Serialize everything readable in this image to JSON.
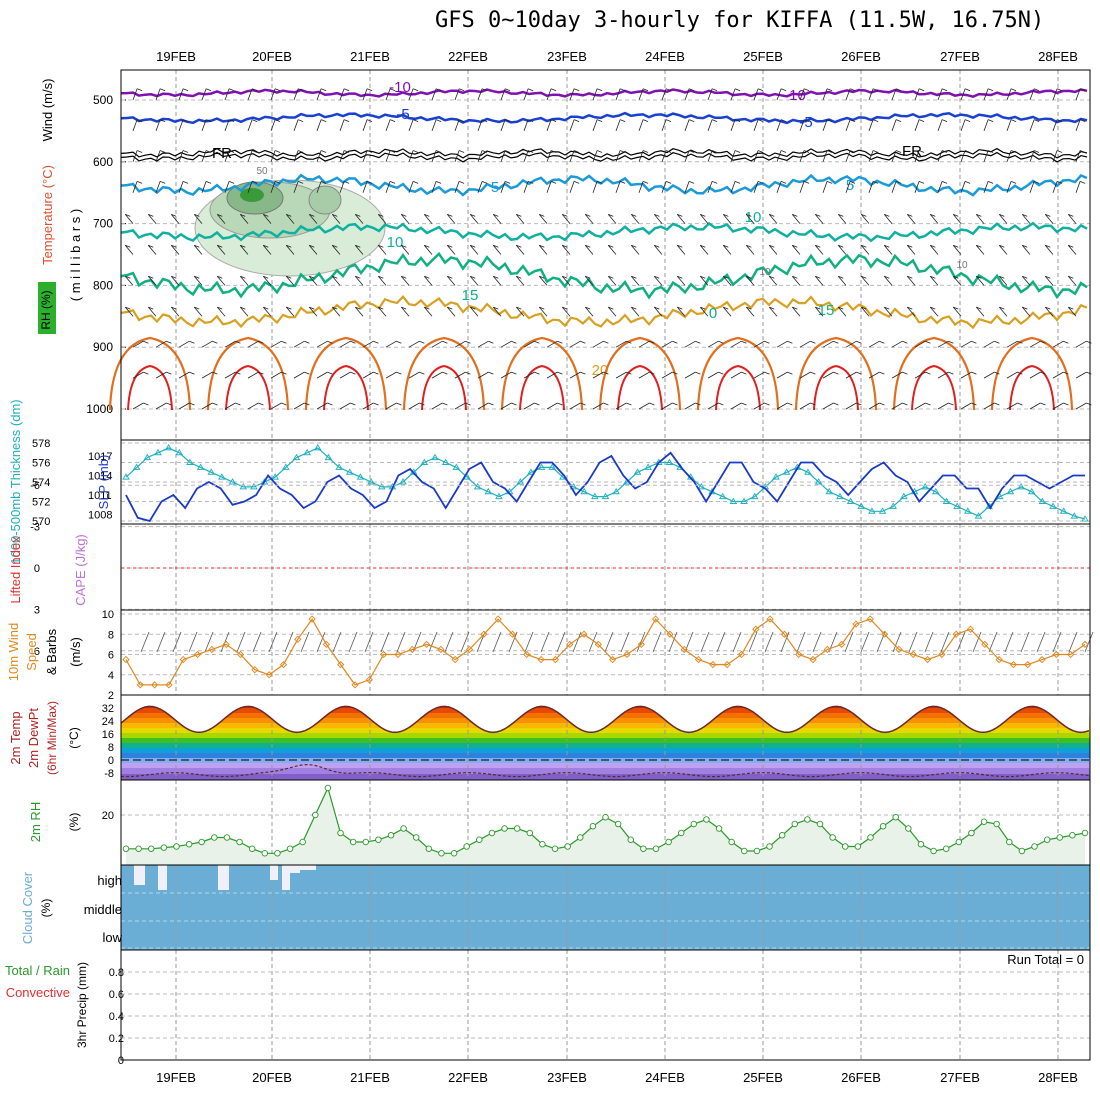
{
  "title": "GFS 0~10day 3-hourly for KIFFA (11.5W, 16.75N)",
  "dates": [
    "19FEB",
    "20FEB",
    "21FEB",
    "22FEB",
    "23FEB",
    "24FEB",
    "25FEB",
    "26FEB",
    "27FEB",
    "28FEB"
  ],
  "colors": {
    "wind": "#000000",
    "temperature": "#e05020",
    "rh": "#2a9a2a",
    "thickness": "#20b0c0",
    "slp": "#1a3ac8",
    "lifted": "#e03030",
    "cape": "#c070d0",
    "wind10": "#e08820",
    "cloud": "#6aaed6",
    "precip_total": "#2a9a2a",
    "precip_conv": "#e03030"
  },
  "panel1": {
    "labels": {
      "rh": "RH (%)",
      "temperature": "Temperature (°C)",
      "wind": "Wind (m/s)",
      "pressure": "( m i l l i b a r s )"
    },
    "pressure_ticks": [
      "500",
      "600",
      "700",
      "800",
      "900",
      "1000"
    ],
    "isotherm_labels": [
      "-10",
      "-5",
      "FR",
      "5",
      "10",
      "15",
      "20",
      "-10",
      "-5",
      "FR",
      "5",
      "10",
      "15",
      "0"
    ],
    "rh_labels": [
      "50",
      "10",
      "10"
    ]
  },
  "panel2": {
    "thickness_label": "1000-500mb Thickness (dm)",
    "slp_label": "SLP (mb)",
    "thickness_ticks": [
      "578",
      "576",
      "574",
      "572",
      "570"
    ],
    "slp_ticks": [
      "1017",
      "1014",
      "1011",
      "1008"
    ]
  },
  "panel3": {
    "lifted_label": "Lifted Index",
    "cape_label": "CAPE (J/kg)",
    "ticks": [
      "-6",
      "-3",
      "0",
      "3",
      "6"
    ]
  },
  "panel4": {
    "label_line1": "10m Wind",
    "label_line2": "Speed",
    "label_line3": "& Barbs",
    "unit": "(m/s)",
    "ticks": [
      "10",
      "8",
      "6",
      "4",
      "2"
    ]
  },
  "panel5": {
    "label_line1": "2m Temp",
    "label_line2": "2m DewPt",
    "label_line3": "(6hr Min/Max)",
    "unit": "(°C)",
    "ticks": [
      "32",
      "24",
      "16",
      "8",
      "0",
      "-8"
    ]
  },
  "panel6": {
    "label": "2m RH",
    "unit": "(%)",
    "ticks": [
      "20"
    ]
  },
  "panel7": {
    "label": "Cloud Cover",
    "unit": "(%)",
    "levels": [
      "high",
      "middle",
      "low"
    ]
  },
  "panel8": {
    "label_total": "Total / Rain",
    "label_conv": "Convective",
    "unit": "3hr Precip (mm)",
    "run_total": "Run Total = 0",
    "ticks": [
      "0.8",
      "0.6",
      "0.4",
      "0.2",
      "0"
    ]
  },
  "chart_data": [
    {
      "type": "line",
      "name": "SLP",
      "ylabel": "SLP (mb)",
      "ylim": [
        1007,
        1019
      ],
      "values": [
        1011,
        1007.5,
        1007,
        1010,
        1011,
        1009,
        1012,
        1013,
        1012,
        1009.5,
        1010,
        1011,
        1014,
        1012,
        1011,
        1009,
        1010,
        1013,
        1014,
        1012,
        1011,
        1009,
        1010,
        1014,
        1015,
        1013,
        1012,
        1009,
        1012,
        1015,
        1016,
        1013,
        1012,
        1010,
        1013,
        1016,
        1016,
        1014,
        1011,
        1013,
        1016,
        1017,
        1014,
        1012,
        1013,
        1016,
        1017.5,
        1015,
        1013,
        1010,
        1013,
        1016,
        1016,
        1013,
        1012,
        1010,
        1013,
        1016,
        1016,
        1014,
        1013,
        1011,
        1013,
        1015,
        1016,
        1014,
        1013,
        1010,
        1012,
        1014,
        1014,
        1012,
        1012,
        1009,
        1012,
        1014,
        1014,
        1013,
        1012,
        1013,
        1014,
        1014
      ]
    },
    {
      "type": "line",
      "name": "1000-500mb Thickness",
      "ylabel": "Thickness (dm)",
      "ylim": [
        570,
        578
      ],
      "values": [
        574.5,
        575.5,
        576.5,
        577,
        577.5,
        577,
        576,
        575.5,
        575,
        574.5,
        574,
        573.5,
        573.5,
        574,
        574.5,
        575.5,
        576.5,
        577,
        577.5,
        576.5,
        575.5,
        575,
        574.5,
        574,
        573.5,
        573.5,
        574,
        575,
        576,
        576.5,
        576,
        575.5,
        574.5,
        573.5,
        573,
        572.5,
        573,
        574,
        575,
        575.5,
        575.5,
        574.5,
        573.5,
        573,
        572.5,
        572.5,
        573,
        574,
        575,
        575.5,
        576,
        576,
        575.5,
        574.5,
        573.5,
        573,
        572.5,
        572,
        572,
        572.5,
        573.5,
        574.5,
        575,
        575.5,
        575,
        574,
        573,
        572.5,
        572,
        571.5,
        571,
        571,
        571.5,
        572.5,
        573,
        573.5,
        573,
        572,
        571.5,
        571,
        570.5,
        571.5,
        572.5,
        573,
        573.5,
        573,
        572,
        571.5,
        571,
        570.5,
        570.2
      ]
    },
    {
      "type": "line",
      "name": "10m Wind Speed",
      "ylabel": "(m/s)",
      "ylim": [
        2,
        10
      ],
      "values": [
        5.5,
        3,
        3,
        3,
        5.5,
        6,
        6.5,
        7,
        6,
        4.5,
        4,
        5,
        7.5,
        9.5,
        7,
        5,
        3,
        3.5,
        6,
        6,
        6.5,
        7,
        6.5,
        5.5,
        6.5,
        8,
        9.5,
        8,
        6,
        5.5,
        5.5,
        7,
        8,
        7,
        5.5,
        6,
        7,
        9.5,
        8,
        6.5,
        5.5,
        5,
        5,
        6,
        8.5,
        9.5,
        8,
        6,
        5.5,
        6.5,
        7,
        9,
        9.5,
        8,
        6.5,
        6,
        5.5,
        6,
        8,
        8.5,
        7,
        5.5,
        5,
        5,
        5.5,
        6,
        6,
        7
      ]
    },
    {
      "type": "line",
      "name": "2m RH",
      "ylabel": "(%)",
      "values": [
        5,
        5,
        5,
        5.5,
        6,
        7,
        8,
        10,
        10,
        8,
        5,
        3,
        3,
        5,
        8,
        20,
        32,
        12,
        8,
        8,
        9,
        11,
        14,
        10,
        5,
        3,
        3,
        6,
        9,
        12,
        14,
        14,
        12,
        7,
        5,
        6,
        10,
        15,
        19,
        16,
        9,
        5,
        5,
        8,
        12,
        16,
        18,
        14,
        8,
        4,
        4,
        6,
        11,
        16,
        18,
        16,
        10,
        6,
        6,
        10,
        15,
        19,
        14,
        7,
        4,
        5,
        8,
        12,
        17,
        16,
        8,
        4,
        6,
        9,
        10,
        11,
        12
      ]
    }
  ]
}
